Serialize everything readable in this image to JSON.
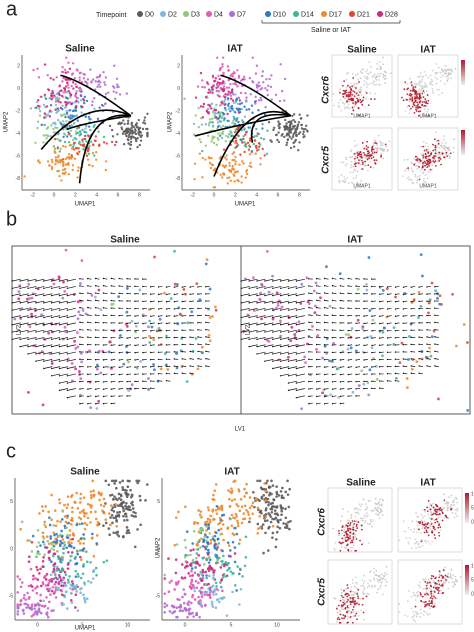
{
  "panel_a": {
    "label": "a",
    "legend_title": "Timepoint",
    "timepoints": [
      {
        "name": "D0",
        "color": "#5b5b5b"
      },
      {
        "name": "D2",
        "color": "#7fb6dc"
      },
      {
        "name": "D3",
        "color": "#8fc97a"
      },
      {
        "name": "D4",
        "color": "#e05cb4"
      },
      {
        "name": "D7",
        "color": "#b06fd0"
      },
      {
        "name": "D10",
        "color": "#2f78c4"
      },
      {
        "name": "D14",
        "color": "#3fb69a"
      },
      {
        "name": "D17",
        "color": "#f08a2c"
      },
      {
        "name": "D21",
        "color": "#e0452f"
      },
      {
        "name": "D28",
        "color": "#d4277a"
      }
    ],
    "group_label": "Saline or IAT",
    "plots": [
      "Saline",
      "IAT"
    ],
    "x_axis": "UMAP1",
    "y_axis": "UMAP2",
    "xticks": [
      "-2",
      "0",
      "2",
      "4",
      "6",
      "8"
    ],
    "yticks": [
      "2",
      "0",
      "-2",
      "-4",
      "-6",
      "-8"
    ],
    "feature_plots": {
      "columns": [
        "Saline",
        "IAT"
      ],
      "genes": [
        "Cxcr6",
        "Cxcr5"
      ],
      "axis": "UMAP1"
    }
  },
  "panel_b": {
    "label": "b",
    "plots": [
      "Saline",
      "IAT"
    ],
    "x_axis": "LV1",
    "y_axis": "LV2"
  },
  "panel_c": {
    "label": "c",
    "plots": [
      "Saline",
      "IAT"
    ],
    "x_axis": "UMAP1",
    "y_axis": "UMAP2",
    "xticks": [
      "0",
      "5",
      "10"
    ],
    "yticks": [
      "5",
      "0",
      "-5"
    ],
    "feature_plots": {
      "columns": [
        "Saline",
        "IAT"
      ],
      "genes": [
        "Cxcr6",
        "Cxcr5"
      ],
      "axis": "UMAP1",
      "scale": [
        "10",
        "5",
        "0"
      ]
    }
  }
}
